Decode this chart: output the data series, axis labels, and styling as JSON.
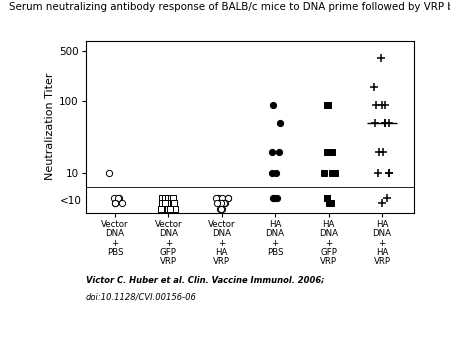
{
  "title": "Serum neutralizing antibody response of BALB/c mice to DNA prime followed by VRP boost.",
  "ylabel": "Neutralization Titer",
  "groups": [
    "Vector\nDNA\n+\nPBS",
    "Vector\nDNA\n+\nGFP\nVRP",
    "Vector\nDNA\n+\nHA\nVRP",
    "HA\nDNA\n+\nPBS",
    "HA\nDNA\n+\nGFP\nVRP",
    "HA\nDNA\n+\nHA\nVRP"
  ],
  "footnote_line1": "Victor C. Huber et al. Clin. Vaccine Immunol. 2006;",
  "footnote_line2": "doi:10.1128/CVI.00156-06",
  "group_data": [
    {
      "gpos": 1,
      "marker": "o",
      "filled": false,
      "values": [
        10,
        4.5,
        4.5,
        4.5,
        3.8,
        3.8,
        3.8
      ]
    },
    {
      "gpos": 2,
      "marker": "s",
      "filled": false,
      "values": [
        4.5,
        4.5,
        4.5,
        4.5,
        4.5,
        3.8,
        3.8,
        3.8,
        3.8,
        3.2,
        3.2,
        3.2,
        3.2,
        3.2
      ]
    },
    {
      "gpos": 3,
      "marker": "o",
      "filled": false,
      "values": [
        4.5,
        4.5,
        4.5,
        4.5,
        4.5,
        3.8,
        3.8,
        3.8,
        3.8,
        3.8,
        3.2,
        3.2,
        3.2
      ]
    },
    {
      "gpos": 4,
      "marker": "o",
      "filled": true,
      "values": [
        90,
        50,
        20,
        20,
        10,
        10,
        4.5,
        4.5,
        4.5
      ]
    },
    {
      "gpos": 5,
      "marker": "s",
      "filled": true,
      "values": [
        90,
        90,
        20,
        20,
        10,
        10,
        10,
        4.5,
        4.5,
        3.8,
        3.8
      ]
    },
    {
      "gpos": 6,
      "marker": "+",
      "filled": true,
      "values": [
        400,
        160,
        90,
        90,
        90,
        50,
        50,
        50,
        50,
        20,
        20,
        10,
        10,
        10,
        4.5,
        3.8
      ]
    }
  ],
  "mean_line": {
    "y": 50,
    "xmin": 5.72,
    "xmax": 6.28
  },
  "below10_label": "<10",
  "below10_y": 4.1,
  "separator_y": 6.5,
  "ylim": [
    2.8,
    700
  ],
  "xlim": [
    0.45,
    6.6
  ],
  "yticks_labeled": [
    10,
    100,
    500
  ],
  "ytick_labels": [
    "10",
    "100",
    "500"
  ]
}
